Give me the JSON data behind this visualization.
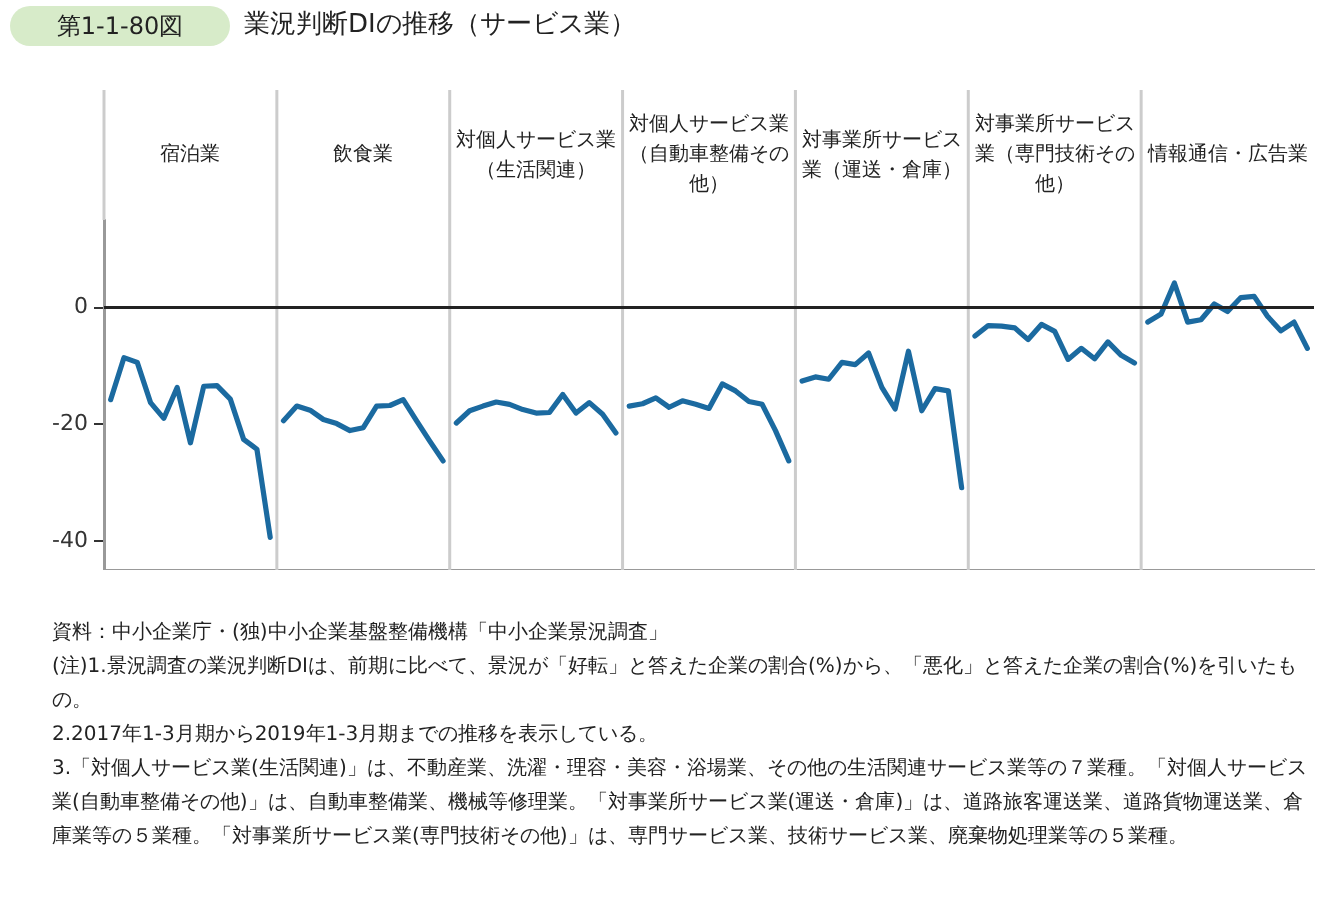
{
  "chart_data": {
    "type": "line",
    "title": "業況判断DIの推移（サービス業）",
    "categories": [
      null,
      null,
      null,
      null,
      null,
      null,
      "宿泊業",
      null,
      null,
      null,
      null,
      null,
      null,
      null,
      null,
      null,
      null,
      null,
      null,
      "飲食業",
      null,
      null,
      null,
      null,
      null,
      null,
      null,
      null,
      null,
      null,
      null,
      null,
      "対個人サービス業（生活関連）",
      null,
      null,
      null,
      null,
      null,
      null,
      null,
      null,
      null,
      null,
      null,
      null,
      "対個人サービス業（自動車整備その他）",
      null,
      null,
      null,
      null,
      null,
      null,
      null,
      null,
      null,
      null,
      null,
      null,
      "対事業所サービス業（運送・倉庫）",
      null,
      null,
      null,
      null,
      null,
      null,
      null,
      null,
      null,
      null,
      null,
      null,
      "対事業所サービス業（専門技術その他）",
      null,
      null,
      null,
      null,
      null,
      null,
      null,
      null,
      null,
      null,
      null,
      null,
      "情報通信・広告業",
      null,
      null,
      null,
      null,
      null,
      null
    ],
    "series": [
      {
        "color": "#1b6aa0",
        "values": [
          -15.8,
          -8.6,
          -9.4,
          -16.3,
          -19.0,
          -13.7,
          -23.2,
          -13.5,
          -13.4,
          -15.7,
          -22.6,
          -24.3,
          -39.4,
          null,
          null,
          null,
          null,
          null,
          null,
          null,
          null,
          null,
          null,
          null,
          null,
          null,
          null,
          null,
          null,
          null,
          null,
          null,
          null,
          null,
          null,
          null,
          null,
          null,
          null,
          null,
          null,
          null,
          null,
          null,
          null,
          null,
          null,
          null,
          null,
          null,
          null,
          null,
          null,
          null,
          null,
          null,
          null,
          null,
          null,
          null,
          null,
          null,
          null,
          null,
          null,
          null,
          null,
          null,
          null,
          null,
          null,
          null,
          null,
          null,
          null,
          null,
          null,
          null,
          null,
          null,
          null,
          null,
          null,
          null,
          null,
          null,
          null,
          null,
          null,
          null,
          null
        ]
      },
      {
        "color": "#1b6aa0",
        "values": [
          null,
          null,
          null,
          null,
          null,
          null,
          null,
          null,
          null,
          null,
          null,
          null,
          null,
          -19.4,
          -16.9,
          -17.6,
          -19.2,
          -19.9,
          -21.1,
          -20.6,
          -16.9,
          -16.8,
          -15.8,
          -19.4,
          -22.9,
          -26.3,
          null,
          null,
          null,
          null,
          null,
          null,
          null,
          null,
          null,
          null,
          null,
          null,
          null,
          null,
          null,
          null,
          null,
          null,
          null,
          null,
          null,
          null,
          null,
          null,
          null,
          null,
          null,
          null,
          null,
          null,
          null,
          null,
          null,
          null,
          null,
          null,
          null,
          null,
          null,
          null,
          null,
          null,
          null,
          null,
          null,
          null,
          null,
          null,
          null,
          null,
          null,
          null,
          null,
          null,
          null,
          null,
          null,
          null,
          null,
          null,
          null,
          null,
          null,
          null,
          null
        ]
      },
      {
        "color": "#1b6aa0",
        "values": [
          null,
          null,
          null,
          null,
          null,
          null,
          null,
          null,
          null,
          null,
          null,
          null,
          null,
          null,
          null,
          null,
          null,
          null,
          null,
          null,
          null,
          null,
          null,
          null,
          null,
          null,
          -19.8,
          -17.7,
          -16.9,
          -16.2,
          -16.6,
          -17.5,
          -18.1,
          -18.0,
          -14.9,
          -18.1,
          -16.3,
          -18.3,
          -21.5,
          null,
          null,
          null,
          null,
          null,
          null,
          null,
          null,
          null,
          null,
          null,
          null,
          null,
          null,
          null,
          null,
          null,
          null,
          null,
          null,
          null,
          null,
          null,
          null,
          null,
          null,
          null,
          null,
          null,
          null,
          null,
          null,
          null,
          null,
          null,
          null,
          null,
          null,
          null,
          null,
          null,
          null,
          null,
          null,
          null,
          null,
          null,
          null,
          null,
          null,
          null,
          null
        ]
      },
      {
        "color": "#1b6aa0",
        "values": [
          null,
          null,
          null,
          null,
          null,
          null,
          null,
          null,
          null,
          null,
          null,
          null,
          null,
          null,
          null,
          null,
          null,
          null,
          null,
          null,
          null,
          null,
          null,
          null,
          null,
          null,
          null,
          null,
          null,
          null,
          null,
          null,
          null,
          null,
          null,
          null,
          null,
          null,
          null,
          -16.9,
          -16.5,
          -15.5,
          -17.1,
          -16.0,
          -16.6,
          -17.3,
          -13.1,
          -14.3,
          -16.1,
          -16.6,
          -21.1,
          -26.3,
          null,
          null,
          null,
          null,
          null,
          null,
          null,
          null,
          null,
          null,
          null,
          null,
          null,
          null,
          null,
          null,
          null,
          null,
          null,
          null,
          null,
          null,
          null,
          null,
          null,
          null,
          null,
          null,
          null,
          null,
          null,
          null,
          null,
          null,
          null,
          null,
          null,
          null,
          null
        ]
      },
      {
        "color": "#1b6aa0",
        "values": [
          null,
          null,
          null,
          null,
          null,
          null,
          null,
          null,
          null,
          null,
          null,
          null,
          null,
          null,
          null,
          null,
          null,
          null,
          null,
          null,
          null,
          null,
          null,
          null,
          null,
          null,
          null,
          null,
          null,
          null,
          null,
          null,
          null,
          null,
          null,
          null,
          null,
          null,
          null,
          null,
          null,
          null,
          null,
          null,
          null,
          null,
          null,
          null,
          null,
          null,
          null,
          null,
          -12.6,
          -11.9,
          -12.3,
          -9.4,
          -9.8,
          -7.8,
          -13.7,
          -17.4,
          -7.5,
          -17.7,
          -13.9,
          -14.3,
          -30.9,
          null,
          null,
          null,
          null,
          null,
          null,
          null,
          null,
          null,
          null,
          null,
          null,
          null,
          null,
          null,
          null,
          null,
          null,
          null,
          null,
          null,
          null,
          null,
          null,
          null,
          null
        ]
      },
      {
        "color": "#1b6aa0",
        "values": [
          null,
          null,
          null,
          null,
          null,
          null,
          null,
          null,
          null,
          null,
          null,
          null,
          null,
          null,
          null,
          null,
          null,
          null,
          null,
          null,
          null,
          null,
          null,
          null,
          null,
          null,
          null,
          null,
          null,
          null,
          null,
          null,
          null,
          null,
          null,
          null,
          null,
          null,
          null,
          null,
          null,
          null,
          null,
          null,
          null,
          null,
          null,
          null,
          null,
          null,
          null,
          null,
          null,
          null,
          null,
          null,
          null,
          null,
          null,
          null,
          null,
          null,
          null,
          null,
          null,
          -4.9,
          -3.1,
          -3.2,
          -3.5,
          -5.5,
          -2.9,
          -4.1,
          -8.9,
          -7.0,
          -8.8,
          -5.9,
          -8.2,
          -9.5,
          null,
          null,
          null,
          null,
          null,
          null,
          null,
          null,
          null,
          null,
          null,
          null,
          null
        ]
      },
      {
        "color": "#1b6aa0",
        "values": [
          null,
          null,
          null,
          null,
          null,
          null,
          null,
          null,
          null,
          null,
          null,
          null,
          null,
          null,
          null,
          null,
          null,
          null,
          null,
          null,
          null,
          null,
          null,
          null,
          null,
          null,
          null,
          null,
          null,
          null,
          null,
          null,
          null,
          null,
          null,
          null,
          null,
          null,
          null,
          null,
          null,
          null,
          null,
          null,
          null,
          null,
          null,
          null,
          null,
          null,
          null,
          null,
          null,
          null,
          null,
          null,
          null,
          null,
          null,
          null,
          null,
          null,
          null,
          null,
          null,
          null,
          null,
          null,
          null,
          null,
          null,
          null,
          null,
          null,
          null,
          null,
          null,
          null,
          -2.5,
          -1.1,
          4.2,
          -2.5,
          -2.1,
          0.6,
          -0.7,
          1.7,
          1.9,
          -1.5,
          -4.0,
          -2.5,
          -7.0
        ]
      }
    ],
    "ylim": [
      -45,
      15
    ],
    "yticks": [
      0,
      -20,
      -40
    ],
    "ref_lines": [
      {
        "axis": "y",
        "value": 0,
        "color": "#222222"
      }
    ],
    "grid": false,
    "legend": false,
    "annotations": [
      "第1-1-80図",
      "資料：中小企業庁・(独)中小企業基盤整備機構「中小企業景況調査」",
      "(注)1.景況調査の業況判断DIは、前期に比べて、景況が「好転」と答えた企業の割合(%)から、「悪化」と答えた企業の割合(%)を引いたもの。",
      "2.2017年1-3月期から2019年1-3月期までの推移を表示している。",
      "3.「対個人サービス業(生活関連)」は、不動産業、洗濯・理容・美容・浴場業、その他の生活関連サービス業等の７業種。「対個人サービス業(自動車整備その他)」は、自動車整備業、機械等修理業。「対事業所サービス業(運送・倉庫)」は、道路旅客運送業、道路貨物運送業、倉庫業等の５業種。「対事業所サービス業(専門技術その他)」は、専門サービス業、技術サービス業、廃棄物処理業等の５業種。"
    ]
  }
}
